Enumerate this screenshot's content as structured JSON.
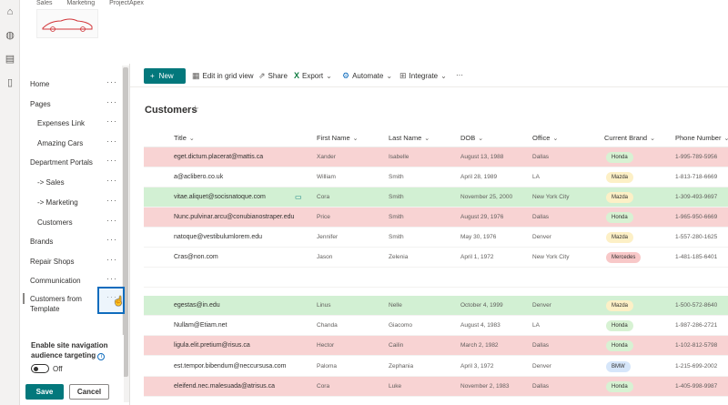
{
  "site": {
    "top_links": [
      "Sales",
      "Marketing",
      "ProjectApex"
    ]
  },
  "rail": [
    "home-icon",
    "globe-icon",
    "news-icon",
    "file-icon"
  ],
  "nav": {
    "items": [
      {
        "label": "Home",
        "indent": 0
      },
      {
        "label": "Pages",
        "indent": 0
      },
      {
        "label": "Expenses Link",
        "indent": 1
      },
      {
        "label": "Amazing Cars",
        "indent": 1
      },
      {
        "label": "Department Portals",
        "indent": 0
      },
      {
        "label": "-> Sales",
        "indent": 1
      },
      {
        "label": "-> Marketing",
        "indent": 1
      },
      {
        "label": "Customers",
        "indent": 1
      },
      {
        "label": "Brands",
        "indent": 0
      },
      {
        "label": "Repair Shops",
        "indent": 0
      },
      {
        "label": "Communication",
        "indent": 0
      }
    ],
    "last_item_line1": "Customers from",
    "last_item_line2": "Template",
    "more_label": "···",
    "audience_label": "Enable site navigation audience targeting",
    "toggle_label": "Off",
    "save_label": "Save",
    "cancel_label": "Cancel"
  },
  "commands": {
    "new": "New",
    "edit_grid": "Edit in grid view",
    "share": "Share",
    "export": "Export",
    "automate": "Automate",
    "integrate": "Integrate",
    "more": "···"
  },
  "list": {
    "title": "Customers",
    "columns": [
      "Title",
      "First Name",
      "Last Name",
      "DOB",
      "Office",
      "Current Brand",
      "Phone Number"
    ],
    "rows": [
      {
        "title": "eget.dictum.placerat@mattis.ca",
        "first": "Xander",
        "last": "Isabelle",
        "dob": "August 13, 1988",
        "office": "Dallas",
        "brand": "Honda",
        "phone": "1-995-789-5956",
        "rowcolor": "#f8d3d3",
        "brandcolor": "#d7f2d3",
        "comment": false
      },
      {
        "title": "a@aclibero.co.uk",
        "first": "William",
        "last": "Smith",
        "dob": "April 28, 1989",
        "office": "LA",
        "brand": "Mazda",
        "phone": "1-813-718-6669",
        "rowcolor": "#ffffff",
        "brandcolor": "#fdf0c6",
        "comment": false
      },
      {
        "title": "vitae.aliquet@socisnatoque.com",
        "first": "Cora",
        "last": "Smith",
        "dob": "November 25, 2000",
        "office": "New York City",
        "brand": "Mazda",
        "phone": "1-309-493-9697",
        "rowcolor": "#d2f0d3",
        "brandcolor": "#fdf0c6",
        "comment": true
      },
      {
        "title": "Nunc.pulvinar.arcu@conubianostraper.edu",
        "first": "Price",
        "last": "Smith",
        "dob": "August 29, 1976",
        "office": "Dallas",
        "brand": "Honda",
        "phone": "1-965-950-6669",
        "rowcolor": "#f8d3d3",
        "brandcolor": "#d7f2d3",
        "comment": false
      },
      {
        "title": "natoque@vestibulumlorem.edu",
        "first": "Jennifer",
        "last": "Smith",
        "dob": "May 30, 1976",
        "office": "Denver",
        "brand": "Mazda",
        "phone": "1-557-280-1625",
        "rowcolor": "#ffffff",
        "brandcolor": "#fdf0c6",
        "comment": false
      },
      {
        "title": "Cras@non.com",
        "first": "Jason",
        "last": "Zelenia",
        "dob": "April 1, 1972",
        "office": "New York City",
        "brand": "Mercedes",
        "phone": "1-481-185-6401",
        "rowcolor": "#ffffff",
        "brandcolor": "#f8c8c8",
        "comment": false
      },
      {
        "title": "",
        "first": "",
        "last": "",
        "dob": "",
        "office": "",
        "brand": "",
        "phone": "",
        "rowcolor": "#ffffff",
        "brandcolor": "",
        "comment": false
      },
      {
        "title": "egestas@in.edu",
        "first": "Linus",
        "last": "Nelle",
        "dob": "October 4, 1999",
        "office": "Denver",
        "brand": "Mazda",
        "phone": "1-500-572-8640",
        "rowcolor": "#d2f0d3",
        "brandcolor": "#fdf0c6",
        "comment": false
      },
      {
        "title": "Nullam@Etiam.net",
        "first": "Chanda",
        "last": "Giacomo",
        "dob": "August 4, 1983",
        "office": "LA",
        "brand": "Honda",
        "phone": "1-987-286-2721",
        "rowcolor": "#ffffff",
        "brandcolor": "#d7f2d3",
        "comment": false
      },
      {
        "title": "ligula.elit.pretium@risus.ca",
        "first": "Hector",
        "last": "Cailin",
        "dob": "March 2, 1982",
        "office": "Dallas",
        "brand": "Honda",
        "phone": "1-102-812-5798",
        "rowcolor": "#f8d3d3",
        "brandcolor": "#d7f2d3",
        "comment": false
      },
      {
        "title": "est.tempor.bibendum@neccursusa.com",
        "first": "Paloma",
        "last": "Zephania",
        "dob": "April 3, 1972",
        "office": "Denver",
        "brand": "BMW",
        "phone": "1-215-699-2002",
        "rowcolor": "#ffffff",
        "brandcolor": "#d6e6fa",
        "comment": false
      },
      {
        "title": "eleifend.nec.malesuada@atrisus.ca",
        "first": "Cora",
        "last": "Luke",
        "dob": "November 2, 1983",
        "office": "Dallas",
        "brand": "Honda",
        "phone": "1-405-998-9987",
        "rowcolor": "#f8d3d3",
        "brandcolor": "#d7f2d3",
        "comment": false
      }
    ]
  }
}
